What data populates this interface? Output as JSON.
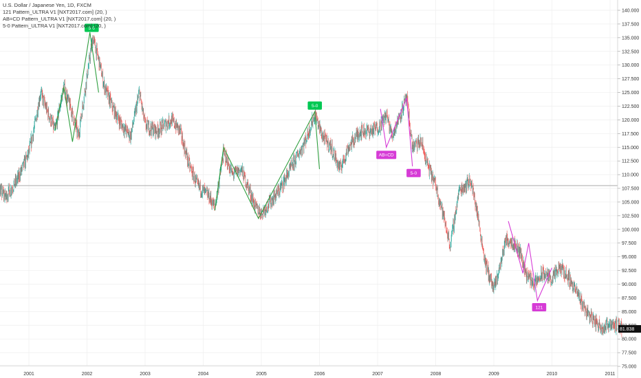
{
  "legend": {
    "title": "U.S. Dollar / Japanese Yen, 1D, FXCM",
    "lines": [
      "121 Pattern_ULTRA V1 [NXT2017.com] (20, )",
      "AB=CD Pattern_ULTRA V1 [NXT2017.com] (20, )",
      "5-0 Pattern_ULTRA V1 [NXT2017.com] (20, )"
    ]
  },
  "price_label": {
    "value": "81.838",
    "color": "#111111"
  },
  "colors": {
    "up": "#26a69a",
    "down": "#ef5350",
    "green_pattern": "#2e9e3e",
    "magenta_pattern": "#d63bd6",
    "badge_green": "#00c853"
  },
  "chart_data": {
    "type": "line",
    "title": "U.S. Dollar / Japanese Yen, 1D, FXCM",
    "x_ticks": [
      "2001",
      "2002",
      "2003",
      "2004",
      "2005",
      "2006",
      "2007",
      "2008",
      "2009",
      "2010",
      "2011"
    ],
    "y_ticks": [
      "140.000",
      "137.500",
      "135.000",
      "132.500",
      "130.000",
      "127.500",
      "125.000",
      "122.500",
      "120.000",
      "117.500",
      "115.000",
      "112.500",
      "110.000",
      "107.500",
      "105.000",
      "102.500",
      "100.000",
      "97.500",
      "95.000",
      "92.500",
      "90.000",
      "87.500",
      "85.000",
      "82.500",
      "80.000",
      "77.500",
      "75.000"
    ],
    "ylim": [
      75,
      141.5
    ],
    "reference_level": 108,
    "last_price": 81.838,
    "price_path": [
      [
        2000.2,
        107
      ],
      [
        2000.4,
        108
      ],
      [
        2000.6,
        106
      ],
      [
        2000.8,
        109
      ],
      [
        2001.0,
        114
      ],
      [
        2001.1,
        119
      ],
      [
        2001.2,
        125
      ],
      [
        2001.3,
        122
      ],
      [
        2001.45,
        118
      ],
      [
        2001.6,
        126
      ],
      [
        2001.75,
        121
      ],
      [
        2001.85,
        117
      ],
      [
        2002.0,
        128
      ],
      [
        2002.1,
        135
      ],
      [
        2002.2,
        131
      ],
      [
        2002.3,
        126
      ],
      [
        2002.45,
        122
      ],
      [
        2002.6,
        119
      ],
      [
        2002.75,
        117
      ],
      [
        2002.9,
        125
      ],
      [
        2003.0,
        119
      ],
      [
        2003.2,
        118
      ],
      [
        2003.45,
        120
      ],
      [
        2003.6,
        118
      ],
      [
        2003.75,
        112
      ],
      [
        2003.9,
        108
      ],
      [
        2004.1,
        106
      ],
      [
        2004.2,
        104
      ],
      [
        2004.35,
        114
      ],
      [
        2004.5,
        110
      ],
      [
        2004.65,
        111
      ],
      [
        2004.8,
        107
      ],
      [
        2004.9,
        104
      ],
      [
        2005.0,
        103
      ],
      [
        2005.15,
        105
      ],
      [
        2005.3,
        107
      ],
      [
        2005.5,
        111
      ],
      [
        2005.75,
        116
      ],
      [
        2005.92,
        121
      ],
      [
        2006.05,
        117
      ],
      [
        2006.2,
        115
      ],
      [
        2006.35,
        111
      ],
      [
        2006.5,
        115
      ],
      [
        2006.7,
        118
      ],
      [
        2006.9,
        118
      ],
      [
        2007.05,
        119
      ],
      [
        2007.15,
        121
      ],
      [
        2007.25,
        117
      ],
      [
        2007.35,
        120
      ],
      [
        2007.5,
        124
      ],
      [
        2007.6,
        115
      ],
      [
        2007.75,
        116
      ],
      [
        2007.85,
        112
      ],
      [
        2008.0,
        108
      ],
      [
        2008.1,
        104
      ],
      [
        2008.25,
        97
      ],
      [
        2008.4,
        107
      ],
      [
        2008.6,
        109
      ],
      [
        2008.7,
        104
      ],
      [
        2008.85,
        94
      ],
      [
        2009.0,
        89
      ],
      [
        2009.1,
        93
      ],
      [
        2009.2,
        98
      ],
      [
        2009.3,
        98
      ],
      [
        2009.45,
        96
      ],
      [
        2009.55,
        92
      ],
      [
        2009.7,
        90
      ],
      [
        2009.85,
        92
      ],
      [
        2010.0,
        91
      ],
      [
        2010.15,
        93
      ],
      [
        2010.3,
        91
      ],
      [
        2010.45,
        88
      ],
      [
        2010.6,
        85
      ],
      [
        2010.75,
        83
      ],
      [
        2010.9,
        82
      ],
      [
        2011.0,
        83
      ],
      [
        2011.2,
        82
      ]
    ],
    "patterns": [
      {
        "color": "green",
        "points": [
          [
            2001.45,
            118
          ],
          [
            2001.6,
            126
          ],
          [
            2001.75,
            116
          ],
          [
            2002.05,
            136
          ],
          [
            2002.2,
            125
          ]
        ]
      },
      {
        "color": "green",
        "points": [
          [
            2004.2,
            103.5
          ],
          [
            2004.35,
            115
          ],
          [
            2004.95,
            102
          ],
          [
            2005.92,
            121.5
          ],
          [
            2006.0,
            111
          ]
        ]
      },
      {
        "color": "magenta",
        "points": [
          [
            2007.05,
            122
          ],
          [
            2007.15,
            115
          ],
          [
            2007.5,
            124
          ],
          [
            2007.6,
            111.5
          ]
        ]
      },
      {
        "color": "magenta",
        "points": [
          [
            2009.25,
            101.5
          ],
          [
            2009.5,
            92
          ],
          [
            2009.6,
            97.5
          ],
          [
            2009.75,
            87
          ],
          [
            2010.0,
            93
          ]
        ]
      }
    ],
    "badges": [
      {
        "text": "5-0",
        "x": 2002.08,
        "y": 136.8,
        "color": "green"
      },
      {
        "text": "5-0",
        "x": 2005.92,
        "y": 122.6,
        "color": "green"
      },
      {
        "text": "AB=CD",
        "x": 2007.15,
        "y": 113.6,
        "color": "magenta"
      },
      {
        "text": "5-0",
        "x": 2007.62,
        "y": 110.3,
        "color": "magenta"
      },
      {
        "text": "121",
        "x": 2009.78,
        "y": 85.8,
        "color": "magenta"
      }
    ]
  }
}
